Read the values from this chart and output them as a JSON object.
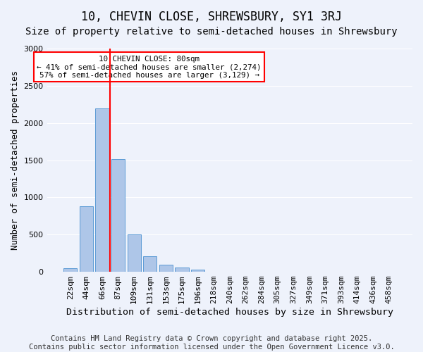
{
  "title": "10, CHEVIN CLOSE, SHREWSBURY, SY1 3RJ",
  "subtitle": "Size of property relative to semi-detached houses in Shrewsbury",
  "xlabel": "Distribution of semi-detached houses by size in Shrewsbury",
  "ylabel": "Number of semi-detached properties",
  "bin_labels": [
    "22sqm",
    "44sqm",
    "66sqm",
    "87sqm",
    "109sqm",
    "131sqm",
    "153sqm",
    "175sqm",
    "196sqm",
    "218sqm",
    "240sqm",
    "262sqm",
    "284sqm",
    "305sqm",
    "327sqm",
    "349sqm",
    "371sqm",
    "393sqm",
    "414sqm",
    "436sqm",
    "458sqm"
  ],
  "bar_values": [
    50,
    880,
    2200,
    1510,
    500,
    210,
    95,
    55,
    30,
    0,
    0,
    0,
    0,
    0,
    0,
    0,
    0,
    0,
    0,
    0,
    0
  ],
  "bar_color": "#aec6e8",
  "bar_edge_color": "#5b9bd5",
  "background_color": "#eef2fb",
  "grid_color": "#ffffff",
  "vline_x": 2.5,
  "vline_color": "red",
  "annotation_title": "10 CHEVIN CLOSE: 80sqm",
  "annotation_line1": "← 41% of semi-detached houses are smaller (2,274)",
  "annotation_line2": "57% of semi-detached houses are larger (3,129) →",
  "annotation_box_color": "white",
  "annotation_box_edge": "red",
  "ylim": [
    0,
    3000
  ],
  "yticks": [
    0,
    500,
    1000,
    1500,
    2000,
    2500,
    3000
  ],
  "footer1": "Contains HM Land Registry data © Crown copyright and database right 2025.",
  "footer2": "Contains public sector information licensed under the Open Government Licence v3.0.",
  "title_fontsize": 12,
  "subtitle_fontsize": 10,
  "axis_label_fontsize": 9,
  "tick_fontsize": 8,
  "footer_fontsize": 7.5
}
